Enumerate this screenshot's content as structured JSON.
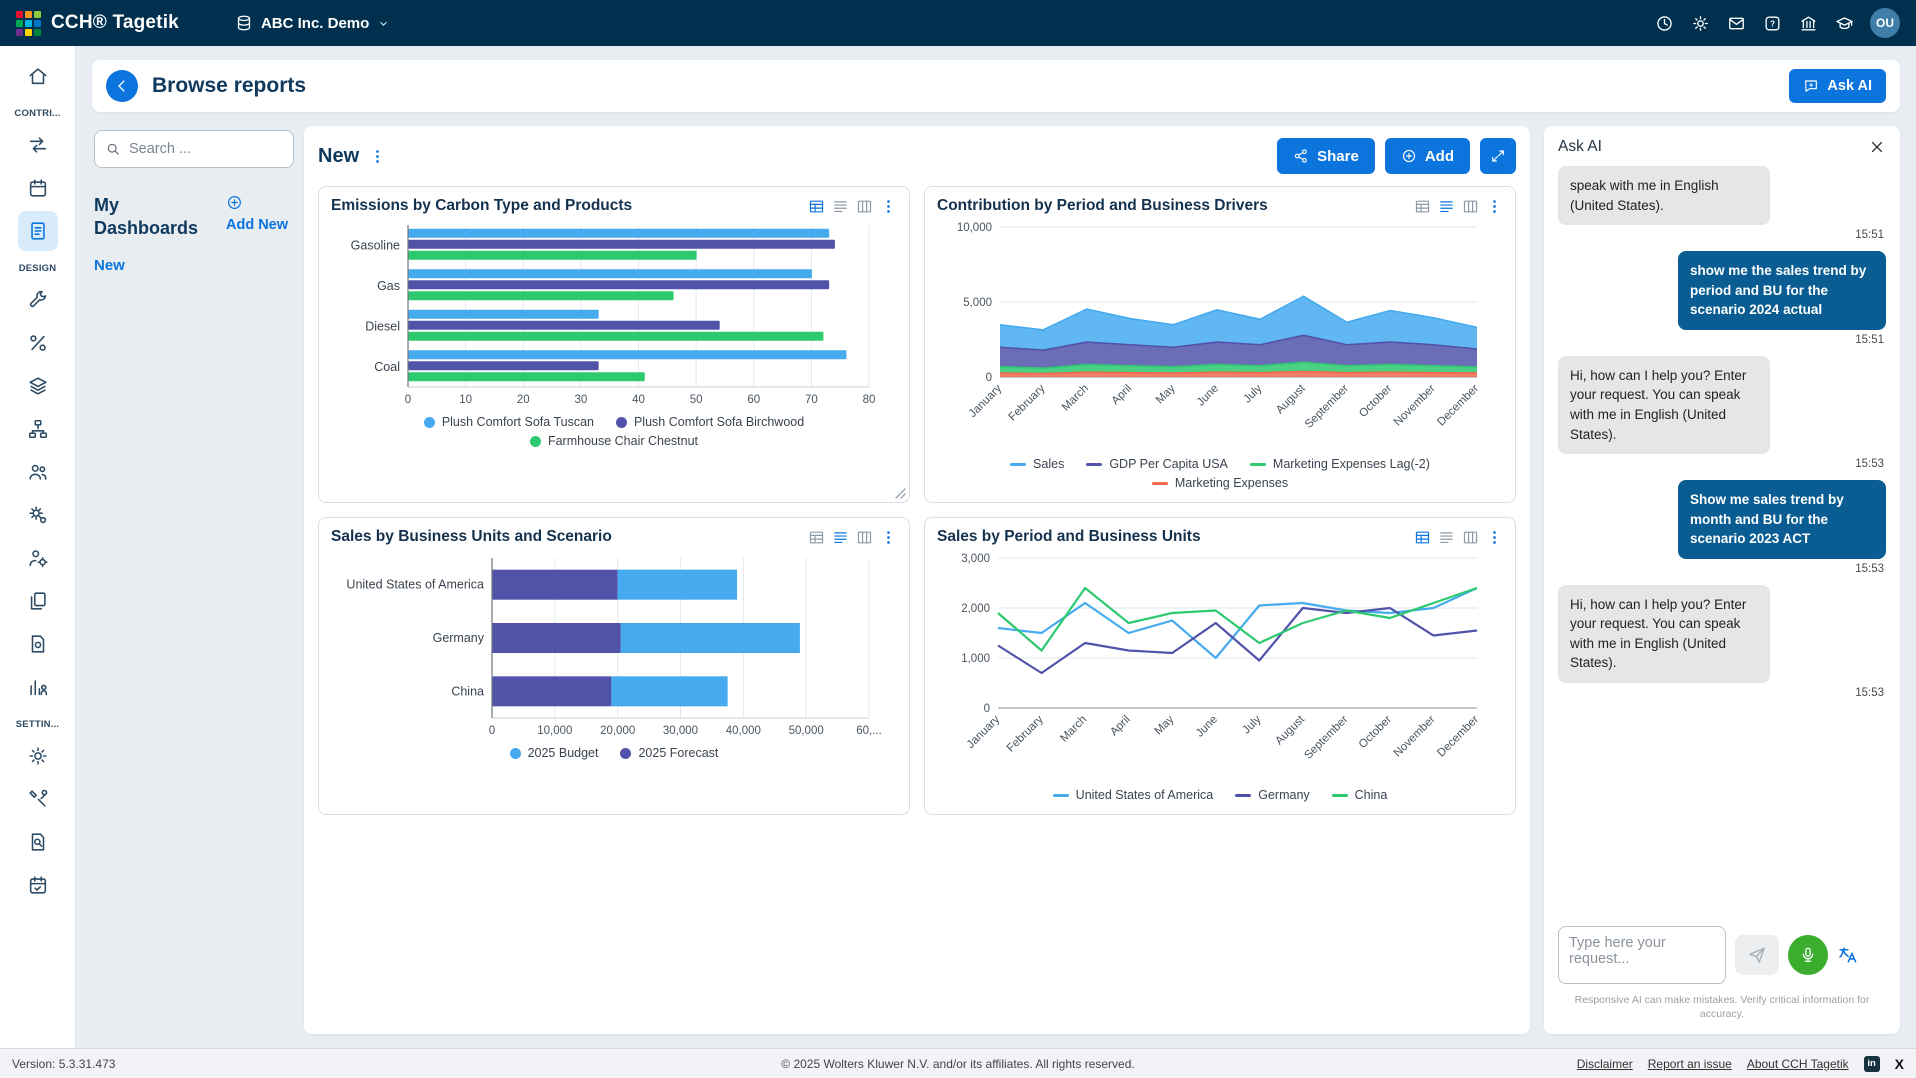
{
  "topbar": {
    "brand": "CCH® Tagetik",
    "environment": "ABC Inc. Demo",
    "icons": [
      "history",
      "settings",
      "mail",
      "help",
      "institution",
      "academy"
    ],
    "avatar": "OU",
    "logo_colors": [
      "#e8112d",
      "#f7941d",
      "#8dc63f",
      "#00a651",
      "#00b5e2",
      "#0077c8",
      "#6f2c91",
      "#ffd200",
      "#00843d"
    ]
  },
  "sidebar": {
    "items": [
      {
        "type": "icon",
        "icon": "home"
      },
      {
        "type": "section",
        "label": "CONTRI..."
      },
      {
        "type": "icon",
        "icon": "process"
      },
      {
        "type": "icon",
        "icon": "calendar"
      },
      {
        "type": "icon",
        "icon": "report",
        "active": true
      },
      {
        "type": "section",
        "label": "DESIGN"
      },
      {
        "type": "icon",
        "icon": "wrench"
      },
      {
        "type": "icon",
        "icon": "percent"
      },
      {
        "type": "icon",
        "icon": "layers"
      },
      {
        "type": "icon",
        "icon": "flow"
      },
      {
        "type": "icon",
        "icon": "people"
      },
      {
        "type": "icon",
        "icon": "gears"
      },
      {
        "type": "icon",
        "icon": "user-gear"
      },
      {
        "type": "icon",
        "icon": "copy"
      },
      {
        "type": "icon",
        "icon": "doc-gear"
      },
      {
        "type": "icon",
        "icon": "chart-users"
      },
      {
        "type": "section",
        "label": "SETTIN..."
      },
      {
        "type": "icon",
        "icon": "gear"
      },
      {
        "type": "icon",
        "icon": "tools"
      },
      {
        "type": "icon",
        "icon": "search-doc"
      },
      {
        "type": "icon",
        "icon": "calendar-check"
      }
    ]
  },
  "browse": {
    "title": "Browse reports",
    "ask_ai_button": "Ask AI",
    "search_placeholder": "Search ...",
    "my_dashboards": "My Dashboards",
    "add_new": "Add New",
    "links": [
      "New"
    ]
  },
  "dashboard": {
    "title": "New",
    "share_label": "Share",
    "add_label": "Add",
    "charts": [
      {
        "title": "Emissions by Carbon Type and Products",
        "toolbar_icons": [
          "table-filter",
          "table-rows",
          "table-columns"
        ],
        "active_icon": 0,
        "chart_data": {
          "type": "bar",
          "orientation": "horizontal",
          "stacked": false,
          "categories": [
            "Gasoline",
            "Gas",
            "Diesel",
            "Coal"
          ],
          "series": [
            {
              "name": "Plush Comfort Sofa Tuscan",
              "color": "#45aaee",
              "values": [
                73,
                70,
                33,
                76
              ]
            },
            {
              "name": "Plush Comfort Sofa Birchwood",
              "color": "#5153a9",
              "values": [
                74,
                73,
                54,
                33
              ]
            },
            {
              "name": "Farmhouse Chair Chestnut",
              "color": "#2dc96f",
              "values": [
                50,
                46,
                72,
                41
              ]
            }
          ],
          "xlim": [
            0,
            80
          ],
          "xticks": [
            "0",
            "10",
            "20",
            "30",
            "40",
            "50",
            "60",
            "70",
            "80"
          ],
          "grid": true
        }
      },
      {
        "title": "Contribution by Period and Business Drivers",
        "toolbar_icons": [
          "table-filter",
          "table-rows",
          "table-columns"
        ],
        "active_icon": 1,
        "chart_data": {
          "type": "area",
          "stacked": true,
          "x": [
            "January",
            "February",
            "March",
            "April",
            "May",
            "June",
            "July",
            "August",
            "September",
            "October",
            "November",
            "December"
          ],
          "series": [
            {
              "name": "Sales",
              "color": "#45aaee",
              "values": [
                1500,
                1350,
                2200,
                1750,
                1500,
                2150,
                1700,
                2600,
                1500,
                2100,
                1800,
                1450
              ]
            },
            {
              "name": "GDP Per Capita USA",
              "color": "#5153a9",
              "values": [
                1300,
                1200,
                1500,
                1400,
                1300,
                1500,
                1400,
                1800,
                1400,
                1500,
                1400,
                1200
              ]
            },
            {
              "name": "Marketing Expenses Lag(-2)",
              "color": "#2dc96f",
              "values": [
                420,
                360,
                520,
                460,
                420,
                520,
                460,
                620,
                460,
                520,
                460,
                400
              ]
            },
            {
              "name": "Marketing Expenses",
              "color": "#f16a4d",
              "values": [
                260,
                230,
                310,
                290,
                260,
                310,
                290,
                360,
                290,
                310,
                290,
                260
              ]
            }
          ],
          "stack_order": [
            3,
            2,
            1,
            0
          ],
          "ylim": [
            0,
            10000
          ],
          "yticks": [
            0,
            5000,
            10000
          ],
          "grid": true
        }
      },
      {
        "title": "Sales by Business Units and Scenario",
        "toolbar_icons": [
          "table-filter",
          "table-rows",
          "table-columns"
        ],
        "active_icon": 1,
        "chart_data": {
          "type": "bar",
          "orientation": "horizontal",
          "stacked": true,
          "categories": [
            "United States of America",
            "Germany",
            "China"
          ],
          "series": [
            {
              "name": "2025 Budget",
              "color": "#45aaee",
              "values": [
                19000,
                28500,
                18500
              ]
            },
            {
              "name": "2025 Forecast",
              "color": "#5153a9",
              "values": [
                20000,
                20500,
                19000
              ]
            }
          ],
          "stack_order": [
            1,
            0
          ],
          "xlim": [
            0,
            60000
          ],
          "xticks": [
            "0",
            "10,000",
            "20,000",
            "30,000",
            "40,000",
            "50,000",
            "60,..."
          ],
          "grid": true
        }
      },
      {
        "title": "Sales by Period and Business Units",
        "toolbar_icons": [
          "table-filter",
          "table-rows",
          "table-columns"
        ],
        "active_icon": 0,
        "chart_data": {
          "type": "line",
          "x": [
            "January",
            "February",
            "March",
            "April",
            "May",
            "June",
            "July",
            "August",
            "September",
            "October",
            "November",
            "December"
          ],
          "series": [
            {
              "name": "United States of America",
              "color": "#45aaee",
              "values": [
                1600,
                1500,
                2100,
                1500,
                1750,
                1000,
                2050,
                2100,
                1950,
                1900,
                2000,
                2400
              ]
            },
            {
              "name": "Germany",
              "color": "#5153a9",
              "values": [
                1250,
                700,
                1300,
                1150,
                1100,
                1700,
                950,
                2000,
                1900,
                2000,
                1450,
                1550
              ]
            },
            {
              "name": "China",
              "color": "#2dc96f",
              "values": [
                1900,
                1150,
                2400,
                1700,
                1900,
                1950,
                1300,
                1700,
                1950,
                1800,
                2100,
                2400
              ]
            }
          ],
          "ylim": [
            0,
            3000
          ],
          "yticks": [
            0,
            1000,
            2000,
            3000
          ],
          "grid": true
        }
      }
    ]
  },
  "ask_ai": {
    "title": "Ask AI",
    "messages": [
      {
        "role": "assistant",
        "text": "speak with me in English (United States).",
        "time": "15:51"
      },
      {
        "role": "user",
        "text": "show me the sales trend by period and BU for the scenario 2024 actual",
        "time": "15:51"
      },
      {
        "role": "assistant",
        "text": "Hi, how can I help you? Enter your request. You can speak with me in English (United States).",
        "time": "15:53"
      },
      {
        "role": "user",
        "text": "Show me sales trend by month and BU for the scenario 2023 ACT",
        "time": "15:53"
      },
      {
        "role": "assistant",
        "text": "Hi, how can I help you? Enter your request. You can speak with me in English (United States).",
        "time": "15:53"
      }
    ],
    "input_placeholder": "Type here your request...",
    "disclaimer": "Responsive AI can make mistakes. Verify critical information for accuracy."
  },
  "footer": {
    "version": "Version: 5.3.31.473",
    "copyright": "© 2025 Wolters Kluwer N.V. and/or its affiliates. All rights reserved.",
    "links": [
      "Disclaimer",
      "Report an issue",
      "About CCH Tagetik"
    ]
  },
  "colors": {
    "accent_blue": "#0b74dd",
    "topbar_navy": "#00304d",
    "user_bubble_blue": "#0a5d92",
    "mic_green": "#3cae2f"
  }
}
